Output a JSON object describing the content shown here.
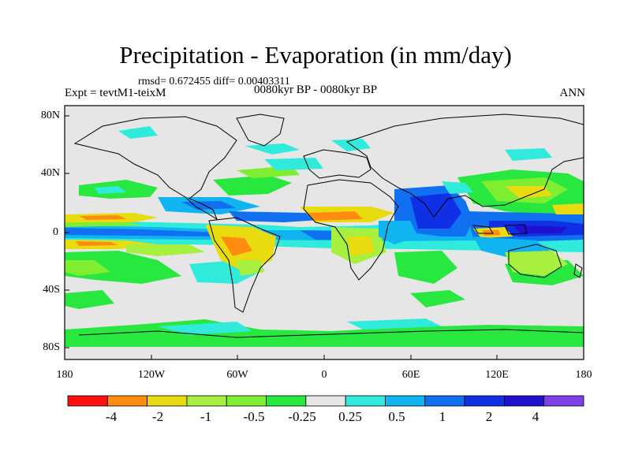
{
  "header": {
    "title": "Precipitation - Evaporation (in mm/day)",
    "stats": "rmsd= 0.672455 diff= 0.00403311",
    "expt": "Expt = tevtM1-teixM",
    "period": "0080kyr BP - 0080kyr BP",
    "season": "ANN"
  },
  "axes": {
    "lat_labels": [
      "80N",
      "40N",
      "0",
      "40S",
      "80S"
    ],
    "lon_labels": [
      "180",
      "120W",
      "60W",
      "0",
      "60E",
      "120E",
      "180"
    ]
  },
  "colorbar": {
    "colors": [
      "#ff1010",
      "#ff8c10",
      "#e8dc10",
      "#a8f040",
      "#80ee30",
      "#28e840",
      "#e6e6e6",
      "#30eadc",
      "#10b4f0",
      "#1070f0",
      "#1030e6",
      "#2010d0",
      "#8040e8"
    ],
    "labels": [
      "-4",
      "-2",
      "-1",
      "-0.5",
      "-0.25",
      "0.25",
      "0.5",
      "1",
      "2",
      "4"
    ]
  }
}
